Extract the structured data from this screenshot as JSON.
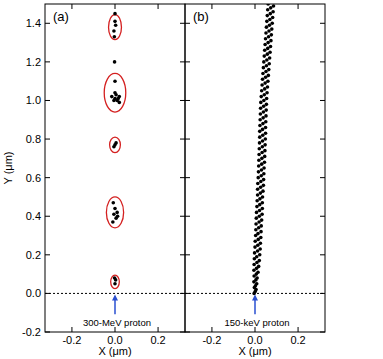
{
  "chart_data": [
    {
      "type": "scatter",
      "title": "(a)",
      "xlabel": "X (μm)",
      "ylabel": "Y (μm)",
      "xlim": [
        -0.325,
        0.325
      ],
      "ylim": [
        -0.2,
        1.5
      ],
      "xticks": [
        -0.2,
        {
          "value": 0,
          "label": "0.0"
        },
        0.2
      ],
      "yticks": [
        -0.2,
        {
          "value": 0,
          "label": "0.0"
        },
        0.2,
        0.4,
        0.6,
        0.8,
        {
          "value": 1,
          "label": "1.0"
        },
        1.2,
        1.4
      ],
      "color": "#000000",
      "marker": "circle",
      "x": [
        0.0,
        0.003,
        -0.002,
        -0.01,
        0.005,
        -0.005,
        0.01,
        0.0,
        0.012,
        -0.008,
        -0.005,
        0.005,
        0.0,
        0.0,
        -0.015,
        0.0,
        0.01,
        0.02,
        0.005,
        -0.005,
        0.015,
        0.02,
        0.0,
        -0.002,
        -0.005,
        0.003,
        0.0,
        -0.003,
        0.0
      ],
      "y": [
        0.05,
        0.07,
        0.08,
        0.37,
        0.39,
        0.41,
        0.42,
        0.44,
        0.4,
        0.47,
        0.76,
        0.78,
        0.77,
        1.1,
        1.02,
        1.01,
        1.0,
        1.02,
        1.03,
        1.0,
        1.01,
        0.99,
        1.04,
        1.2,
        1.36,
        1.39,
        1.41,
        1.33,
        1.45
      ],
      "clusters": {
        "color": "#d42020",
        "items": [
          {
            "x": 0,
            "y": 0.06,
            "rx": 0.02,
            "ry": 0.035
          },
          {
            "x": 0,
            "y": 0.42,
            "rx": 0.04,
            "ry": 0.08
          },
          {
            "x": 0,
            "y": 0.77,
            "rx": 0.025,
            "ry": 0.04
          },
          {
            "x": 0,
            "y": 1.04,
            "rx": 0.05,
            "ry": 0.1
          },
          {
            "x": 0,
            "y": 1.38,
            "rx": 0.03,
            "ry": 0.065
          }
        ]
      },
      "reference_line": 0,
      "annotation": {
        "text": "300-MeV proton",
        "x": 0,
        "y": -0.16,
        "color": "#2a4fd0"
      }
    },
    {
      "type": "scatter",
      "title": "(b)",
      "xlabel": "X (μm)",
      "xlim": [
        -0.325,
        0.325
      ],
      "ylim": [
        -0.2,
        1.5
      ],
      "xticks": [
        -0.2,
        {
          "value": 0,
          "label": "0.0"
        },
        0.2
      ],
      "yticks": [
        -0.2,
        0,
        0.2,
        0.4,
        0.6,
        0.8,
        1,
        1.2,
        1.4
      ],
      "tick_labels": "x",
      "color": "#000000",
      "marker": "circle",
      "x": [
        -0.004,
        0.001,
        0.005,
        -0.003,
        0.002,
        0.008,
        -0.005,
        0.004,
        0.01,
        -0.004,
        0.006,
        0.014,
        -0.005,
        0.007,
        0.017,
        -0.004,
        0.009,
        0.02,
        -0.003,
        0.008,
        0.022,
        -0.002,
        0.012,
        0.024,
        0.0,
        0.013,
        0.025,
        0.001,
        0.015,
        0.027,
        0.003,
        0.014,
        0.028,
        0.004,
        0.017,
        0.029,
        0.005,
        0.019,
        0.031,
        0.006,
        0.02,
        0.033,
        0.007,
        0.021,
        0.034,
        0.009,
        0.022,
        0.034,
        0.01,
        0.023,
        0.035,
        0.012,
        0.025,
        0.037,
        0.012,
        0.026,
        0.039,
        0.013,
        0.027,
        0.04,
        0.015,
        0.029,
        0.041,
        0.016,
        0.03,
        0.042,
        0.017,
        0.031,
        0.044,
        0.018,
        0.032,
        0.045,
        0.019,
        0.033,
        0.046,
        0.02,
        0.034,
        0.047,
        0.021,
        0.035,
        0.048,
        0.022,
        0.036,
        0.049,
        0.022,
        0.035,
        0.049,
        0.023,
        0.037,
        0.05,
        0.024,
        0.038,
        0.051,
        0.025,
        0.039,
        0.052,
        0.026,
        0.04,
        0.053,
        0.027,
        0.041,
        0.054,
        0.029,
        0.043,
        0.056,
        0.031,
        0.045,
        0.058,
        0.033,
        0.047,
        0.06,
        0.035,
        0.049,
        0.062,
        0.037,
        0.051,
        0.064,
        0.039,
        0.053,
        0.066,
        0.041,
        0.055,
        0.068,
        0.043,
        0.057,
        0.07,
        0.045,
        0.059,
        0.072,
        0.047,
        0.061,
        0.074,
        0.049,
        0.063,
        0.076,
        0.051,
        0.065,
        0.078,
        0.053,
        0.067,
        0.08,
        0.055,
        0.069,
        0.082,
        0.057,
        0.071,
        0.084,
        0.059,
        0.073,
        0.086,
        0.061,
        0.075,
        0.088
      ],
      "y": [
        0.0,
        0.01,
        0.02,
        0.03,
        0.04,
        0.05,
        0.06,
        0.07,
        0.08,
        0.09,
        0.1,
        0.11,
        0.12,
        0.13,
        0.14,
        0.15,
        0.16,
        0.17,
        0.18,
        0.19,
        0.2,
        0.21,
        0.22,
        0.23,
        0.24,
        0.25,
        0.26,
        0.27,
        0.28,
        0.29,
        0.3,
        0.31,
        0.32,
        0.33,
        0.34,
        0.35,
        0.36,
        0.37,
        0.38,
        0.39,
        0.4,
        0.41,
        0.42,
        0.43,
        0.44,
        0.45,
        0.46,
        0.47,
        0.48,
        0.49,
        0.5,
        0.51,
        0.52,
        0.53,
        0.54,
        0.55,
        0.56,
        0.57,
        0.58,
        0.59,
        0.6,
        0.61,
        0.62,
        0.63,
        0.64,
        0.65,
        0.66,
        0.67,
        0.68,
        0.69,
        0.7,
        0.71,
        0.72,
        0.73,
        0.74,
        0.75,
        0.76,
        0.77,
        0.78,
        0.79,
        0.8,
        0.81,
        0.82,
        0.83,
        0.84,
        0.85,
        0.86,
        0.87,
        0.88,
        0.89,
        0.9,
        0.91,
        0.92,
        0.93,
        0.94,
        0.95,
        0.96,
        0.97,
        0.98,
        0.99,
        1.0,
        1.01,
        1.02,
        1.03,
        1.04,
        1.05,
        1.06,
        1.07,
        1.08,
        1.09,
        1.1,
        1.11,
        1.12,
        1.13,
        1.14,
        1.15,
        1.16,
        1.17,
        1.18,
        1.19,
        1.2,
        1.21,
        1.22,
        1.23,
        1.24,
        1.25,
        1.26,
        1.27,
        1.28,
        1.29,
        1.3,
        1.31,
        1.32,
        1.33,
        1.34,
        1.35,
        1.36,
        1.37,
        1.38,
        1.39,
        1.4,
        1.41,
        1.42,
        1.43,
        1.44,
        1.45,
        1.46,
        1.47,
        1.48,
        1.49,
        1.5,
        1.51,
        1.52
      ],
      "reference_line": 0,
      "annotation": {
        "text": "150-keV proton",
        "x": 0,
        "y": -0.16,
        "color": "#2a4fd0"
      }
    }
  ]
}
